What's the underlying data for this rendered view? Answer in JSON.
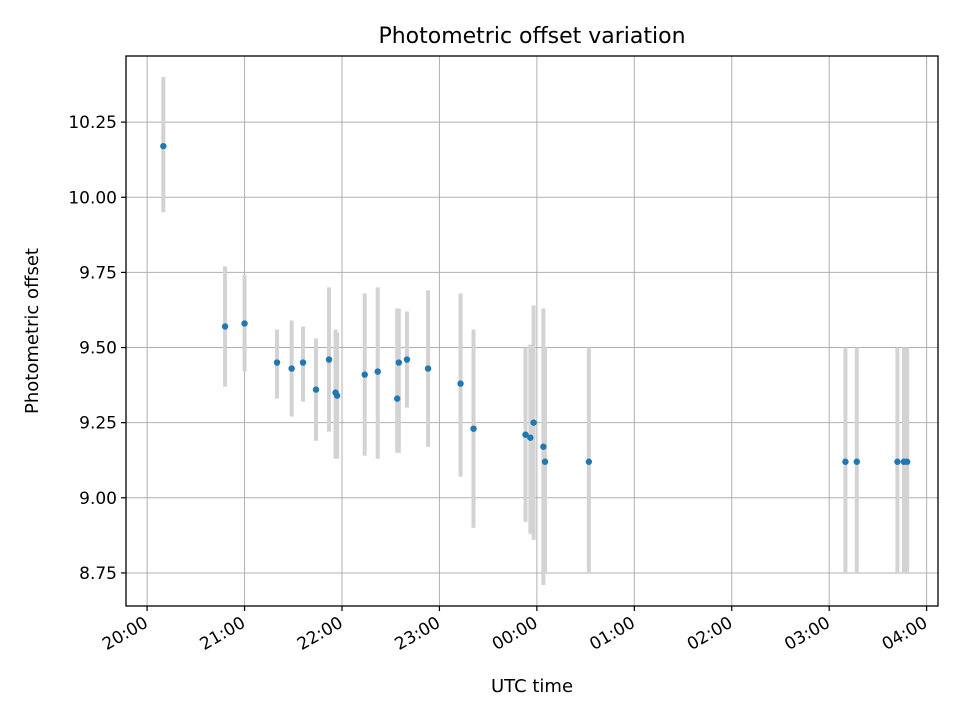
{
  "chart_data": {
    "type": "scatter",
    "title": "Photometric offset variation",
    "xlabel": "UTC time",
    "ylabel": "Photometric offset",
    "x_is_time": true,
    "xlim": [
      "19:47",
      "04:07"
    ],
    "ylim": [
      8.64,
      10.47
    ],
    "xticks": [
      "20:00",
      "21:00",
      "22:00",
      "23:00",
      "00:00",
      "01:00",
      "02:00",
      "03:00",
      "04:00"
    ],
    "yticks": [
      8.75,
      9.0,
      9.25,
      9.5,
      9.75,
      10.0,
      10.25
    ],
    "ytick_labels": [
      "8.75",
      "9.00",
      "9.25",
      "9.50",
      "9.75",
      "10.00",
      "10.25"
    ],
    "grid": true,
    "marker_color": "#1f77b4",
    "errorbar_color": "#d3d3d3",
    "points": [
      {
        "x": "20:10",
        "y": 10.17,
        "ylow": 9.95,
        "yhigh": 10.4
      },
      {
        "x": "20:48",
        "y": 9.57,
        "ylow": 9.37,
        "yhigh": 9.77
      },
      {
        "x": "21:00",
        "y": 9.58,
        "ylow": 9.42,
        "yhigh": 9.74
      },
      {
        "x": "21:20",
        "y": 9.45,
        "ylow": 9.33,
        "yhigh": 9.56
      },
      {
        "x": "21:29",
        "y": 9.43,
        "ylow": 9.27,
        "yhigh": 9.59
      },
      {
        "x": "21:36",
        "y": 9.45,
        "ylow": 9.32,
        "yhigh": 9.57
      },
      {
        "x": "21:44",
        "y": 9.36,
        "ylow": 9.19,
        "yhigh": 9.53
      },
      {
        "x": "21:52",
        "y": 9.46,
        "ylow": 9.22,
        "yhigh": 9.7
      },
      {
        "x": "21:56",
        "y": 9.35,
        "ylow": 9.13,
        "yhigh": 9.56
      },
      {
        "x": "21:57",
        "y": 9.34,
        "ylow": 9.13,
        "yhigh": 9.55
      },
      {
        "x": "22:14",
        "y": 9.41,
        "ylow": 9.14,
        "yhigh": 9.68
      },
      {
        "x": "22:22",
        "y": 9.42,
        "ylow": 9.13,
        "yhigh": 9.7
      },
      {
        "x": "22:34",
        "y": 9.33,
        "ylow": 9.15,
        "yhigh": 9.63
      },
      {
        "x": "22:35",
        "y": 9.45,
        "ylow": 9.15,
        "yhigh": 9.63
      },
      {
        "x": "22:40",
        "y": 9.46,
        "ylow": 9.3,
        "yhigh": 9.62
      },
      {
        "x": "22:53",
        "y": 9.43,
        "ylow": 9.17,
        "yhigh": 9.69
      },
      {
        "x": "23:13",
        "y": 9.38,
        "ylow": 9.07,
        "yhigh": 9.68
      },
      {
        "x": "23:21",
        "y": 9.23,
        "ylow": 8.9,
        "yhigh": 9.56
      },
      {
        "x": "23:53",
        "y": 9.21,
        "ylow": 8.92,
        "yhigh": 9.5
      },
      {
        "x": "23:56",
        "y": 9.2,
        "ylow": 8.88,
        "yhigh": 9.51
      },
      {
        "x": "23:58",
        "y": 9.25,
        "ylow": 8.86,
        "yhigh": 9.64
      },
      {
        "x": "00:04",
        "y": 9.17,
        "ylow": 8.71,
        "yhigh": 9.63
      },
      {
        "x": "00:05",
        "y": 9.12,
        "ylow": 8.75,
        "yhigh": 9.5
      },
      {
        "x": "00:32",
        "y": 9.12,
        "ylow": 8.75,
        "yhigh": 9.5
      },
      {
        "x": "03:10",
        "y": 9.12,
        "ylow": 8.75,
        "yhigh": 9.5
      },
      {
        "x": "03:17",
        "y": 9.12,
        "ylow": 8.75,
        "yhigh": 9.5
      },
      {
        "x": "03:42",
        "y": 9.12,
        "ylow": 8.75,
        "yhigh": 9.5
      },
      {
        "x": "03:46",
        "y": 9.12,
        "ylow": 8.75,
        "yhigh": 9.5
      },
      {
        "x": "03:48",
        "y": 9.12,
        "ylow": 8.75,
        "yhigh": 9.5
      }
    ]
  }
}
